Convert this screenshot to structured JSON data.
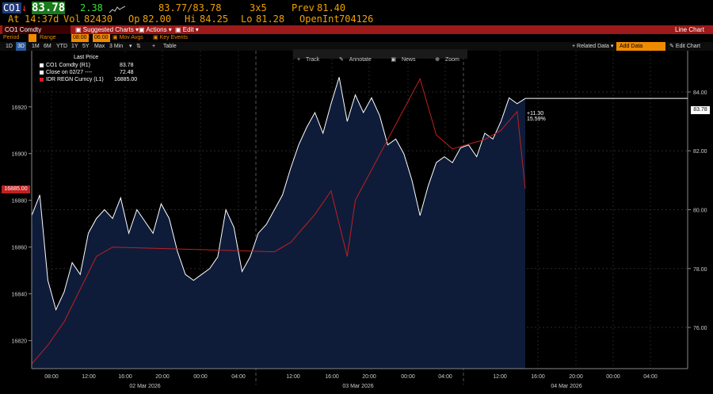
{
  "quote": {
    "ticker": "CO1",
    "arrow": "↓",
    "last": "83.78",
    "change": "2.38",
    "bid_ask": "83.77/83.78",
    "size": "3x5",
    "prev_label": "Prev",
    "prev": "81.40",
    "at_label": "At",
    "time": "14:37d",
    "vol_label": "Vol",
    "vol": "82430",
    "op_label": "Op",
    "op": "82.00",
    "hi_label": "Hi",
    "hi": "84.25",
    "lo_label": "Lo",
    "lo": "81.28",
    "openint_label": "OpenInt",
    "openint": "704126"
  },
  "menubar": {
    "security": "CO1 Comdty",
    "suggested": "Suggested Charts",
    "actions": "Actions",
    "edit": "Edit",
    "chart_type": "Line Chart"
  },
  "toolbar": {
    "period_label": "Period",
    "period_value": "",
    "range_label": "Range",
    "range_from": "08:00",
    "range_to": "06:00",
    "mov_avgs": "Mov Avgs",
    "key_events": "Key Events"
  },
  "zoombar": {
    "buttons": [
      "1D",
      "3D",
      "1M",
      "6M",
      "YTD",
      "1Y",
      "5Y",
      "Max",
      "3 Min"
    ],
    "active": "3D",
    "table": "Table",
    "related": "Related Data",
    "add_data": "Add Data",
    "edit_chart": "Edit Chart"
  },
  "chart_tools": [
    "Track",
    "Annotate",
    "News",
    "Zoom"
  ],
  "legend": {
    "title": "Last Price",
    "items": [
      {
        "label": "CO1 Comdty  (R1)",
        "value": "83.78",
        "color": "#ffffff"
      },
      {
        "label": "Close on 02/27  ----",
        "value": "72.48",
        "color": "#ffffff"
      },
      {
        "label": "IDR REGN Curncy  (L1)",
        "value": "16885.00",
        "color": "#d02020"
      }
    ]
  },
  "annotation": {
    "change": "+11.30",
    "pct": "15.59%"
  },
  "markers": {
    "left_value": "16885.00",
    "right_value": "83.78"
  },
  "colors": {
    "price_line": "#ffffff",
    "area_fill": "#0e1c3a",
    "idr_line": "#c02020",
    "accent": "#f08a00",
    "menu_red": "#9c1a1a"
  },
  "chart_data": {
    "type": "line",
    "left_axis": {
      "label": "IDR REGN Curncy",
      "ticks": [
        16820,
        16840,
        16860,
        16880,
        16900,
        16920
      ]
    },
    "right_axis": {
      "label": "CO1 Comdty",
      "ticks": [
        "76.00",
        "78.00",
        "80.00",
        "82.00",
        "84.00"
      ]
    },
    "x_ticks": [
      "08:00",
      "12:00",
      "16:00",
      "20:00",
      "00:00",
      "04:00",
      "12:00",
      "16:00",
      "20:00",
      "00:00",
      "04:00",
      "12:00",
      "16:00",
      "20:00",
      "00:00",
      "04:00"
    ],
    "dates": [
      "02 Mar 2026",
      "03 Mar 2026",
      "04 Mar 2026"
    ],
    "series": [
      {
        "name": "CO1 Comdty",
        "axis": "right",
        "values": [
          [
            0,
            79.8
          ],
          [
            1,
            80.5
          ],
          [
            2,
            77.6
          ],
          [
            3,
            76.6
          ],
          [
            4,
            77.2
          ],
          [
            5,
            78.2
          ],
          [
            6,
            77.8
          ],
          [
            7,
            79.2
          ],
          [
            8,
            79.7
          ],
          [
            9,
            80.0
          ],
          [
            10,
            79.7
          ],
          [
            11,
            80.4
          ],
          [
            12,
            79.2
          ],
          [
            13,
            80.0
          ],
          [
            14,
            79.6
          ],
          [
            15,
            79.2
          ],
          [
            16,
            80.2
          ],
          [
            17,
            79.7
          ],
          [
            18,
            78.6
          ],
          [
            19,
            77.8
          ],
          [
            20,
            77.6
          ],
          [
            21,
            77.8
          ],
          [
            22,
            78.0
          ],
          [
            23,
            78.4
          ],
          [
            24,
            80.0
          ],
          [
            25,
            79.4
          ],
          [
            26,
            77.9
          ],
          [
            27,
            78.4
          ],
          [
            28,
            79.2
          ],
          [
            29,
            79.5
          ],
          [
            30,
            80.0
          ],
          [
            31,
            80.5
          ],
          [
            32,
            81.4
          ],
          [
            33,
            82.2
          ],
          [
            34,
            82.8
          ],
          [
            35,
            83.3
          ],
          [
            36,
            82.6
          ],
          [
            37,
            83.6
          ],
          [
            38,
            84.5
          ],
          [
            39,
            83.0
          ],
          [
            40,
            83.9
          ],
          [
            41,
            83.3
          ],
          [
            42,
            83.8
          ],
          [
            43,
            83.2
          ],
          [
            44,
            82.2
          ],
          [
            45,
            82.4
          ],
          [
            46,
            81.9
          ],
          [
            47,
            81.0
          ],
          [
            48,
            79.8
          ],
          [
            49,
            80.8
          ],
          [
            50,
            81.6
          ],
          [
            51,
            81.8
          ],
          [
            52,
            81.6
          ],
          [
            53,
            82.1
          ],
          [
            54,
            82.2
          ],
          [
            55,
            81.8
          ],
          [
            56,
            82.6
          ],
          [
            57,
            82.4
          ],
          [
            58,
            83.0
          ],
          [
            59,
            83.8
          ],
          [
            60,
            83.6
          ],
          [
            61,
            83.78
          ]
        ]
      },
      {
        "name": "IDR REGN Curncy",
        "axis": "left",
        "values": [
          [
            0,
            16810
          ],
          [
            2,
            16818
          ],
          [
            4,
            16828
          ],
          [
            6,
            16842
          ],
          [
            8,
            16856
          ],
          [
            10,
            16860
          ],
          [
            20,
            16859
          ],
          [
            30,
            16858
          ],
          [
            32,
            16862
          ],
          [
            35,
            16874
          ],
          [
            37,
            16884
          ],
          [
            38,
            16870
          ],
          [
            39,
            16856
          ],
          [
            40,
            16880
          ],
          [
            48,
            16932
          ],
          [
            50,
            16908
          ],
          [
            52,
            16902
          ],
          [
            54,
            16904
          ],
          [
            56,
            16906
          ],
          [
            58,
            16910
          ],
          [
            60,
            16918
          ],
          [
            61,
            16885
          ]
        ]
      }
    ]
  }
}
